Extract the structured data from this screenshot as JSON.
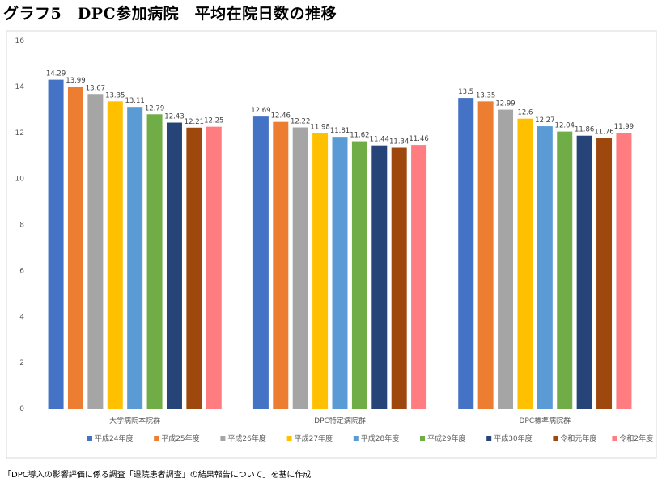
{
  "title": "グラフ5　DPC参加病院　平均在院日数の推移",
  "source": "「DPC導入の影響評価に係る調査「退院患者調査」の結果報告について」を基に作成",
  "chart_data": {
    "type": "bar",
    "title": "",
    "xlabel": "",
    "ylabel": "",
    "ylim": [
      0,
      16
    ],
    "yticks": [
      0,
      2,
      4,
      6,
      8,
      10,
      12,
      14,
      16
    ],
    "grid": false,
    "legend_position": "bottom",
    "categories": [
      "大学病院本院群",
      "DPC特定病院群",
      "DPC標準病院群"
    ],
    "series": [
      {
        "name": "平成24年度",
        "color": "#4472C4",
        "values": [
          14.29,
          12.69,
          13.5
        ],
        "labels": [
          "14.29",
          "12.69",
          "13.5"
        ]
      },
      {
        "name": "平成25年度",
        "color": "#ED7D31",
        "values": [
          13.99,
          12.46,
          13.35
        ],
        "labels": [
          "13.99",
          "12.46",
          "13.35"
        ]
      },
      {
        "name": "平成26年度",
        "color": "#A5A5A5",
        "values": [
          13.67,
          12.22,
          12.99
        ],
        "labels": [
          "13.67",
          "12.22",
          "12.99"
        ]
      },
      {
        "name": "平成27年度",
        "color": "#FFC000",
        "values": [
          13.35,
          11.98,
          12.6
        ],
        "labels": [
          "13.35",
          "11.98",
          "12.6"
        ]
      },
      {
        "name": "平成28年度",
        "color": "#5B9BD5",
        "values": [
          13.11,
          11.81,
          12.27
        ],
        "labels": [
          "13.11",
          "11.81",
          "12.27"
        ]
      },
      {
        "name": "平成29年度",
        "color": "#70AD47",
        "values": [
          12.79,
          11.62,
          12.04
        ],
        "labels": [
          "12.79",
          "11.62",
          "12.04"
        ]
      },
      {
        "name": "平成30年度",
        "color": "#264478",
        "values": [
          12.43,
          11.44,
          11.86
        ],
        "labels": [
          "12.43",
          "11.44",
          "11.86"
        ]
      },
      {
        "name": "令和元年度",
        "color": "#9E480E",
        "values": [
          12.21,
          11.34,
          11.76
        ],
        "labels": [
          "12.21",
          "11.34",
          "11.76"
        ]
      },
      {
        "name": "令和2年度",
        "color": "#FF7C80",
        "values": [
          12.25,
          11.46,
          11.99
        ],
        "labels": [
          "12.25",
          "11.46",
          "11.99"
        ]
      }
    ]
  }
}
